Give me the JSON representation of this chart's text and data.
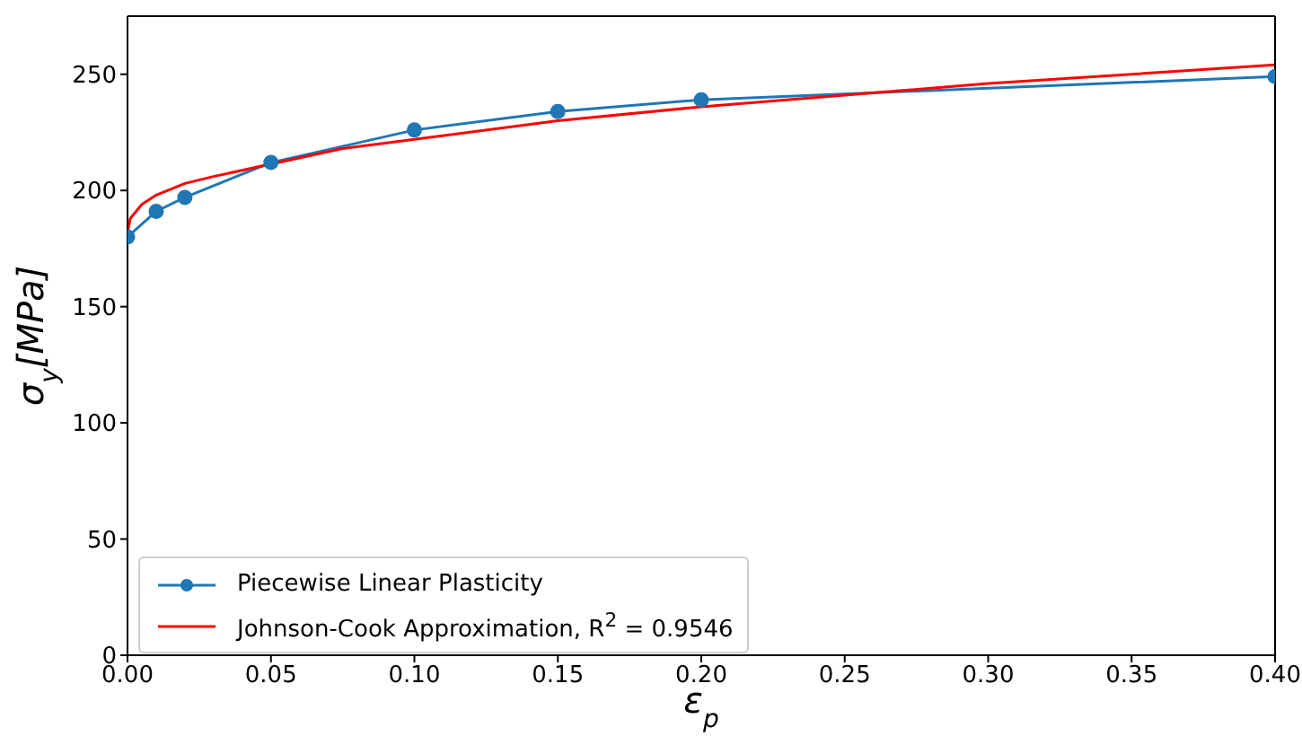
{
  "chart_data": {
    "type": "line",
    "xlabel": "ε$_{p}$",
    "ylabel": "σ$_{y}$[MPa]",
    "xlim": [
      0,
      0.4
    ],
    "xticks": [
      {
        "value": 0,
        "label": "0.00"
      },
      {
        "value": 0.05,
        "label": "0.05"
      },
      {
        "value": 0.1,
        "label": "0.10"
      },
      {
        "value": 0.15,
        "label": "0.15"
      },
      {
        "value": 0.2,
        "label": "0.20"
      },
      {
        "value": 0.25,
        "label": "0.25"
      },
      {
        "value": 0.3,
        "label": "0.30"
      },
      {
        "value": 0.35,
        "label": "0.35"
      },
      {
        "value": 0.4,
        "label": "0.40"
      }
    ],
    "ylim": [
      0,
      275
    ],
    "yticks": [
      0,
      50,
      100,
      150,
      200,
      250
    ],
    "grid": false,
    "legend": "bottom left",
    "series": [
      {
        "name": "Piecewise Linear Plasticity",
        "color": "#1f77b4",
        "marker": "circle",
        "x": [
          0,
          0.01,
          0.02,
          0.05,
          0.1,
          0.15,
          0.2,
          0.4
        ],
        "values": [
          180,
          191,
          197,
          212,
          226,
          234,
          239,
          249
        ]
      },
      {
        "name": "Johnson-Cook Approximation, R$^{2}$  = 0.9546",
        "color": "#ff0000",
        "marker": "none",
        "x": [
          0,
          0.001,
          0.005,
          0.01,
          0.02,
          0.03,
          0.075,
          0.1,
          0.15,
          0.2,
          0.25,
          0.3,
          0.35,
          0.4
        ],
        "values": [
          182,
          188,
          194,
          198,
          203,
          206,
          218,
          222,
          230,
          236,
          241,
          246,
          250,
          254
        ]
      }
    ]
  }
}
